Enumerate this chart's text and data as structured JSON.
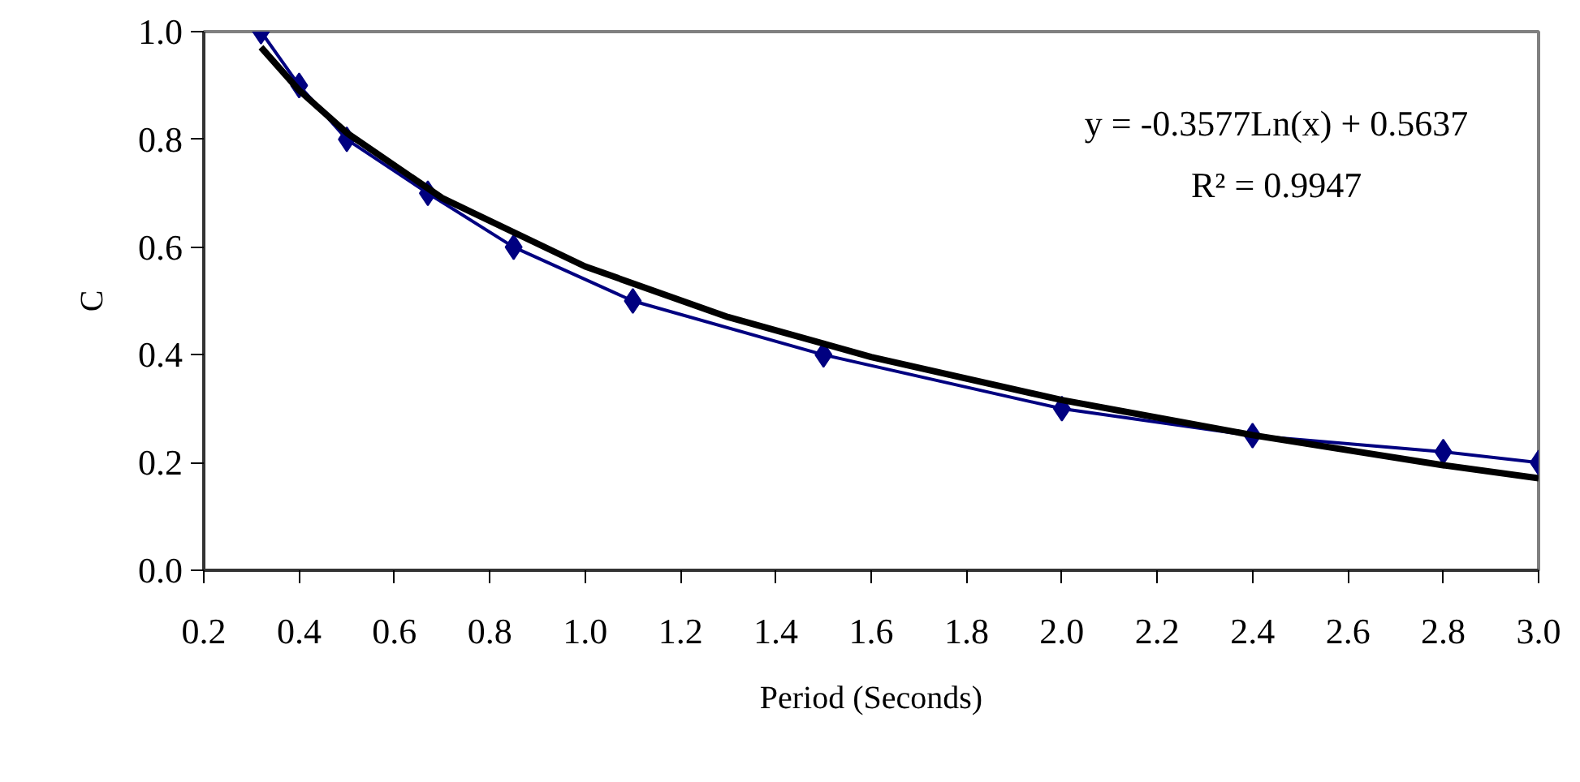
{
  "chart_data": {
    "type": "line",
    "xlabel": "Period (Seconds)",
    "ylabel": "C",
    "xlim": [
      0.2,
      3.0
    ],
    "ylim": [
      0,
      1.0
    ],
    "xticks": [
      0.2,
      0.4,
      0.6,
      0.8,
      {
        "value": 1,
        "label": "1.0"
      },
      1.2,
      1.4,
      1.6,
      1.8,
      {
        "value": 2,
        "label": "2.0"
      },
      2.2,
      2.4,
      2.6,
      2.8,
      {
        "value": 3,
        "label": "3.0"
      }
    ],
    "yticks": [
      {
        "value": 0,
        "label": "0.0"
      },
      0.2,
      0.4,
      0.6,
      0.8,
      {
        "value": 1,
        "label": "1.0"
      }
    ],
    "grid": false,
    "series": [
      {
        "color": "#000080",
        "marker": "diamond",
        "x": [
          0.32,
          0.4,
          0.5,
          0.67,
          0.85,
          1.1,
          1.5,
          2.0,
          2.4,
          2.8,
          3.0
        ],
        "values": [
          1.0,
          0.9,
          0.8,
          0.7,
          0.6,
          0.5,
          0.4,
          0.3,
          0.25,
          0.22,
          0.2
        ]
      },
      {
        "color": "#000000",
        "marker": "none",
        "x": [
          0.32,
          0.4,
          0.5,
          0.7,
          1.0,
          1.3,
          1.6,
          2.0,
          2.4,
          2.8,
          3.0
        ],
        "values": [
          0.971,
          0.891,
          0.812,
          0.691,
          0.564,
          0.47,
          0.396,
          0.316,
          0.251,
          0.195,
          0.171
        ]
      }
    ],
    "annotations": [
      "y = -0.3577Ln(x) + 0.5637",
      "R² = 0.9947"
    ]
  }
}
